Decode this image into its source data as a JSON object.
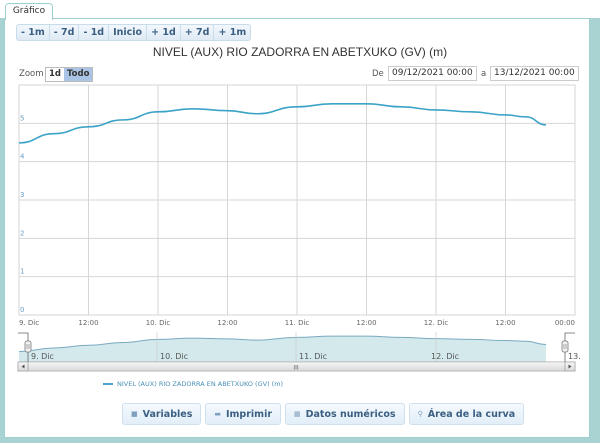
{
  "tab": {
    "label": "Gráfico"
  },
  "nav_buttons": [
    "- 1m",
    "- 7d",
    "- 1d",
    "Inicio",
    "+ 1d",
    "+ 7d",
    "+ 1m"
  ],
  "zoom": {
    "label": "Zoom",
    "options": [
      "1d",
      "Todo"
    ],
    "selected": "Todo"
  },
  "range": {
    "from_label": "De",
    "from_value": "09/12/2021 00:00",
    "to_label": "a",
    "to_value": "13/12/2021 00:00"
  },
  "legend": {
    "label": "NIVEL (AUX) RIO ZADORRA EN ABETXUKO (GV) (m)"
  },
  "actions": [
    {
      "label": "Variables",
      "icon": "list-icon"
    },
    {
      "label": "Imprimir",
      "icon": "print-icon"
    },
    {
      "label": "Datos numéricos",
      "icon": "table-icon"
    },
    {
      "label": "Área de la curva",
      "icon": "search-icon"
    }
  ],
  "navigator": {
    "labels": [
      "9. Dic",
      "10. Dic",
      "11. Dic",
      "12. Dic",
      "13."
    ],
    "scroll_grip": "III"
  },
  "colors": {
    "series": "#3ba3c7",
    "navigator_fill": "#d3e9ec",
    "panel_border": "#9fd0cf"
  },
  "chart_data": {
    "type": "line",
    "title": "NIVEL (AUX) RIO ZADORRA EN ABETXUKO (GV) (m)",
    "xlabel": "",
    "ylabel": "",
    "ylim": [
      0,
      6
    ],
    "yticks": [
      0,
      1,
      2,
      3,
      4,
      5
    ],
    "xticks": [
      "9. Dic",
      "12:00",
      "10. Dic",
      "12:00",
      "11. Dic",
      "12:00",
      "12. Dic",
      "12:00",
      "00:00"
    ],
    "grid": true,
    "legend_position": "bottom",
    "series": [
      {
        "name": "NIVEL (AUX) RIO ZADORRA EN ABETXUKO (GV) (m)",
        "x_hours": [
          0,
          6,
          12,
          18,
          24,
          30,
          36,
          41,
          48,
          54,
          60,
          66,
          72,
          78,
          84,
          87.5,
          91
        ],
        "x": [
          "09/12 00:00",
          "09/12 06:00",
          "09/12 12:00",
          "09/12 18:00",
          "10/12 00:00",
          "10/12 06:00",
          "10/12 12:00",
          "10/12 17:00",
          "11/12 00:00",
          "11/12 06:00",
          "11/12 12:00",
          "11/12 18:00",
          "12/12 00:00",
          "12/12 06:00",
          "12/12 12:00",
          "12/12 15:30",
          "12/12 19:00"
        ],
        "values": [
          4.49,
          4.73,
          4.91,
          5.09,
          5.3,
          5.38,
          5.33,
          5.25,
          5.43,
          5.51,
          5.51,
          5.43,
          5.35,
          5.3,
          5.22,
          5.17,
          4.96
        ]
      }
    ]
  }
}
